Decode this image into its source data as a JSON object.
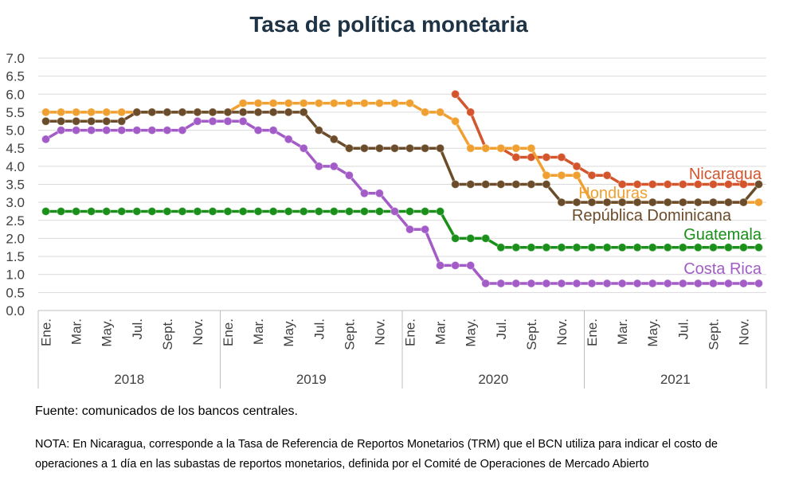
{
  "chart_data": {
    "type": "line",
    "title": "Tasa de política monetaria",
    "ylim": [
      0,
      7
    ],
    "yticks": [
      "0.0",
      "0.5",
      "1.0",
      "1.5",
      "2.0",
      "2.5",
      "3.0",
      "3.5",
      "4.0",
      "4.5",
      "5.0",
      "5.5",
      "6.0",
      "6.5",
      "7.0"
    ],
    "month_ticks": [
      "Ene.",
      "Mar.",
      "May.",
      "Jul.",
      "Sept.",
      "Nov.",
      "Ene.",
      "Mar.",
      "May.",
      "Jul.",
      "Sept.",
      "Nov.",
      "Ene.",
      "Mar.",
      "May.",
      "Jul.",
      "Sept.",
      "Nov.",
      "Ene.",
      "Mar.",
      "May.",
      "Jul.",
      "Sept.",
      "Nov."
    ],
    "years": [
      "2018",
      "2019",
      "2020",
      "2021"
    ],
    "grid": true,
    "series": [
      {
        "name": "Nicaragua",
        "color": "#d4552b",
        "start_index": 27,
        "values": [
          6.0,
          5.5,
          4.5,
          4.5,
          4.25,
          4.25,
          4.25,
          4.25,
          4.0,
          3.75,
          3.75,
          3.5,
          3.5,
          3.5,
          3.5,
          3.5,
          3.5,
          3.5,
          3.5,
          3.5,
          3.5
        ]
      },
      {
        "name": "Honduras",
        "color": "#f0a030",
        "start_index": 0,
        "values": [
          5.5,
          5.5,
          5.5,
          5.5,
          5.5,
          5.5,
          5.5,
          5.5,
          5.5,
          5.5,
          5.5,
          5.5,
          5.5,
          5.75,
          5.75,
          5.75,
          5.75,
          5.75,
          5.75,
          5.75,
          5.75,
          5.75,
          5.75,
          5.75,
          5.75,
          5.5,
          5.5,
          5.25,
          4.5,
          4.5,
          4.5,
          4.5,
          4.5,
          3.75,
          3.75,
          3.75,
          3.0,
          3.0,
          3.0,
          3.0,
          3.0,
          3.0,
          3.0,
          3.0,
          3.0,
          3.0,
          3.0,
          3.0
        ]
      },
      {
        "name": "República Dominicana",
        "color": "#6b4c2a",
        "start_index": 0,
        "values": [
          5.25,
          5.25,
          5.25,
          5.25,
          5.25,
          5.25,
          5.5,
          5.5,
          5.5,
          5.5,
          5.5,
          5.5,
          5.5,
          5.5,
          5.5,
          5.5,
          5.5,
          5.5,
          5.0,
          4.75,
          4.5,
          4.5,
          4.5,
          4.5,
          4.5,
          4.5,
          4.5,
          3.5,
          3.5,
          3.5,
          3.5,
          3.5,
          3.5,
          3.5,
          3.0,
          3.0,
          3.0,
          3.0,
          3.0,
          3.0,
          3.0,
          3.0,
          3.0,
          3.0,
          3.0,
          3.0,
          3.0,
          3.5
        ]
      },
      {
        "name": "Guatemala",
        "color": "#1a8f1a",
        "start_index": 0,
        "values": [
          2.75,
          2.75,
          2.75,
          2.75,
          2.75,
          2.75,
          2.75,
          2.75,
          2.75,
          2.75,
          2.75,
          2.75,
          2.75,
          2.75,
          2.75,
          2.75,
          2.75,
          2.75,
          2.75,
          2.75,
          2.75,
          2.75,
          2.75,
          2.75,
          2.75,
          2.75,
          2.75,
          2.0,
          2.0,
          2.0,
          1.75,
          1.75,
          1.75,
          1.75,
          1.75,
          1.75,
          1.75,
          1.75,
          1.75,
          1.75,
          1.75,
          1.75,
          1.75,
          1.75,
          1.75,
          1.75,
          1.75,
          1.75
        ]
      },
      {
        "name": "Costa Rica",
        "color": "#a35cc7",
        "start_index": 0,
        "values": [
          4.75,
          5.0,
          5.0,
          5.0,
          5.0,
          5.0,
          5.0,
          5.0,
          5.0,
          5.0,
          5.25,
          5.25,
          5.25,
          5.25,
          5.0,
          5.0,
          4.75,
          4.5,
          4.0,
          4.0,
          3.75,
          3.25,
          3.25,
          2.75,
          2.25,
          2.25,
          1.25,
          1.25,
          1.25,
          0.75,
          0.75,
          0.75,
          0.75,
          0.75,
          0.75,
          0.75,
          0.75,
          0.75,
          0.75,
          0.75,
          0.75,
          0.75,
          0.75,
          0.75,
          0.75,
          0.75,
          0.75,
          0.75
        ]
      }
    ]
  },
  "footer": {
    "source": "Fuente: comunicados de los bancos centrales.",
    "note": "NOTA: En Nicaragua, corresponde a la Tasa de Referencia de Reportos Monetarios (TRM) que el BCN utiliza para indicar el costo de operaciones a 1 día en las subastas de reportos monetarios, definida por el Comité de Operaciones de Mercado Abierto"
  }
}
